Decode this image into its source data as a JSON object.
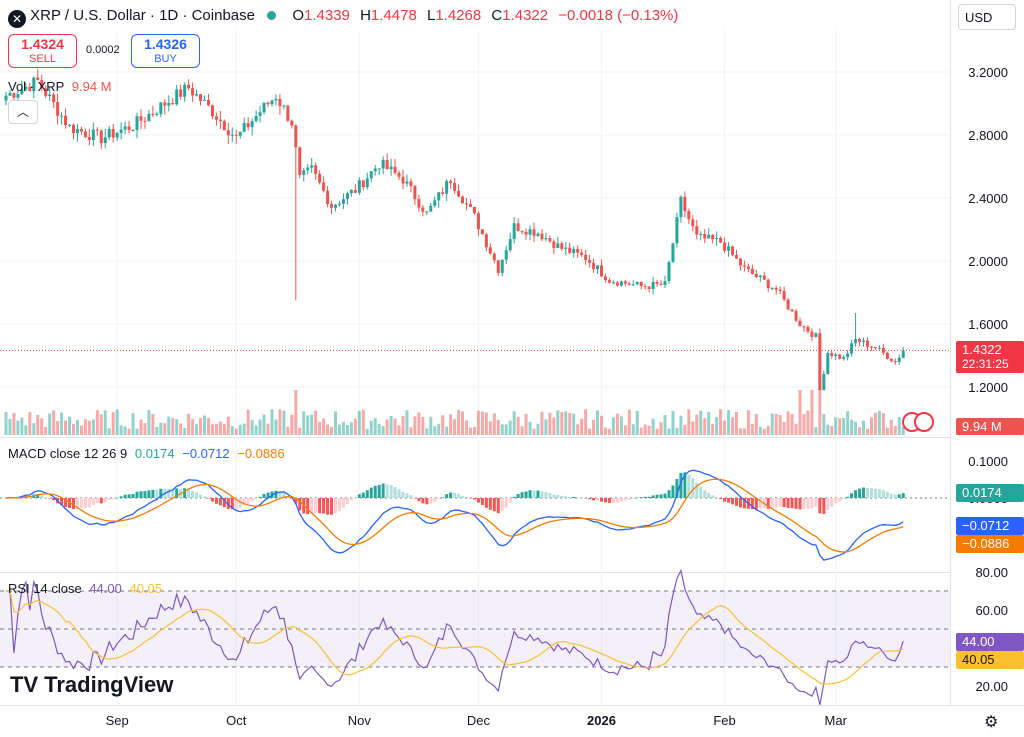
{
  "header": {
    "symbol": "XRP / U.S. Dollar · 1D · Coinbase",
    "open_label": "O",
    "open": "1.4339",
    "high_label": "H",
    "high": "1.4478",
    "low_label": "L",
    "low": "1.4268",
    "close_label": "C",
    "close": "1.4322",
    "change": "−0.0018 (−0.13%)"
  },
  "trade": {
    "sell_price": "1.4324",
    "sell_label": "SELL",
    "spread": "0.0002",
    "buy_price": "1.4326",
    "buy_label": "BUY"
  },
  "currency": "USD",
  "volume_legend": {
    "label": "Vol · XRP",
    "value": "9.94 M"
  },
  "macd_legend": {
    "label": "MACD close 12 26 9",
    "hist": "0.0174",
    "macd": "−0.0712",
    "signal": "−0.0886"
  },
  "rsi_legend": {
    "label": "RSI 14 close",
    "rsi": "44.00",
    "ma": "40.05"
  },
  "price_tags": {
    "last": "1.4322",
    "countdown": "22:31:25",
    "volume": "9.94 M",
    "macd_hist": "0.0174",
    "macd": "−0.0712",
    "signal": "−0.0886",
    "rsi": "44.00",
    "rsi_ma": "40.05"
  },
  "logo_text": "TradingView",
  "colors": {
    "up": "#26a69a",
    "down": "#ef5350",
    "macd": "#2962ff",
    "signal": "#f57c00",
    "rsi": "#7e57c2",
    "rsi_ma": "#fbc02d"
  },
  "chart_data": [
    {
      "type": "candlestick",
      "title": "XRP / U.S. Dollar · 1D · Coinbase",
      "x_ticks": [
        "Sep",
        "Oct",
        "Nov",
        "Dec",
        "2026",
        "Feb",
        "Mar"
      ],
      "y_ticks": [
        3.2,
        2.8,
        2.4,
        2.0,
        1.6,
        1.2
      ],
      "ylim": [
        1.05,
        3.35
      ],
      "last_price": 1.4322,
      "close_anchors": [
        {
          "day": 0,
          "close": 3.05
        },
        {
          "day": 8,
          "close": 3.14
        },
        {
          "day": 16,
          "close": 2.85
        },
        {
          "day": 24,
          "close": 2.78
        },
        {
          "day": 32,
          "close": 2.86
        },
        {
          "day": 40,
          "close": 3.0
        },
        {
          "day": 46,
          "close": 3.1
        },
        {
          "day": 52,
          "close": 2.95
        },
        {
          "day": 58,
          "close": 2.78
        },
        {
          "day": 64,
          "close": 2.95
        },
        {
          "day": 68,
          "close": 3.05
        },
        {
          "day": 72,
          "close": 2.88
        },
        {
          "day": 74,
          "close": 2.52
        },
        {
          "day": 77,
          "close": 2.58
        },
        {
          "day": 82,
          "close": 2.35
        },
        {
          "day": 88,
          "close": 2.45
        },
        {
          "day": 94,
          "close": 2.62
        },
        {
          "day": 100,
          "close": 2.52
        },
        {
          "day": 106,
          "close": 2.3
        },
        {
          "day": 112,
          "close": 2.52
        },
        {
          "day": 118,
          "close": 2.28
        },
        {
          "day": 124,
          "close": 1.95
        },
        {
          "day": 128,
          "close": 2.22
        },
        {
          "day": 134,
          "close": 2.18
        },
        {
          "day": 140,
          "close": 2.08
        },
        {
          "day": 146,
          "close": 2.02
        },
        {
          "day": 152,
          "close": 1.88
        },
        {
          "day": 160,
          "close": 1.84
        },
        {
          "day": 166,
          "close": 1.85
        },
        {
          "day": 170,
          "close": 2.38
        },
        {
          "day": 174,
          "close": 2.15
        },
        {
          "day": 180,
          "close": 2.12
        },
        {
          "day": 186,
          "close": 1.95
        },
        {
          "day": 194,
          "close": 1.82
        },
        {
          "day": 200,
          "close": 1.6
        },
        {
          "day": 204,
          "close": 1.52
        },
        {
          "day": 205,
          "close": 1.18
        },
        {
          "day": 207,
          "close": 1.42
        },
        {
          "day": 211,
          "close": 1.38
        },
        {
          "day": 214,
          "close": 1.5
        },
        {
          "day": 219,
          "close": 1.45
        },
        {
          "day": 224,
          "close": 1.36
        },
        {
          "day": 226,
          "close": 1.4322
        }
      ],
      "macd_ticks": [
        0.1,
        0.0,
        -0.1
      ],
      "rsi_ticks": [
        80,
        60,
        40,
        20
      ],
      "rsi_bands": [
        70,
        50,
        30
      ]
    }
  ]
}
